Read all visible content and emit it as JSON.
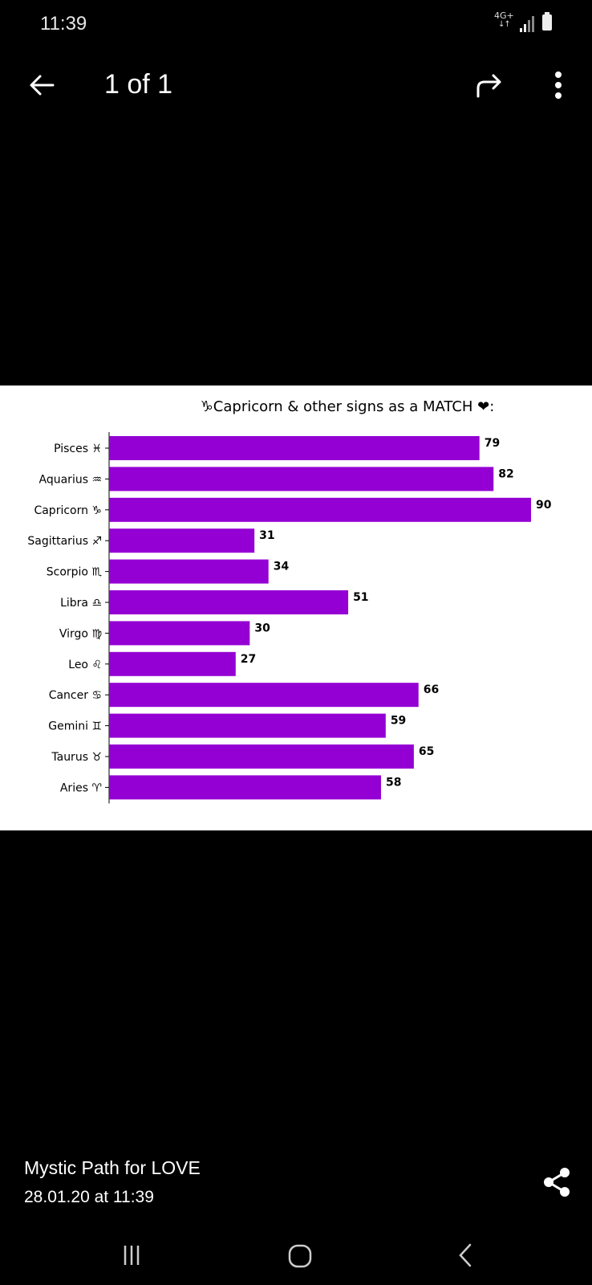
{
  "status_bar": {
    "time": "11:39",
    "network_type": "4G+",
    "network_arrows": "↓↑",
    "icons": [
      "signal-icon",
      "battery-icon"
    ]
  },
  "top_bar": {
    "counter": "1 of 1",
    "icons": [
      "back-arrow-icon",
      "share-forward-icon",
      "more-vert-icon"
    ]
  },
  "chart_data": {
    "type": "bar",
    "orientation": "horizontal",
    "title": "♑Capricorn & other signs as a MATCH ❤:",
    "categories": [
      "Pisces ♓",
      "Aquarius ♒",
      "Capricorn ♑",
      "Sagittarius ♐",
      "Scorpio ♏",
      "Libra ♎",
      "Virgo ♍",
      "Leo ♌",
      "Cancer ♋",
      "Gemini ♊",
      "Taurus ♉",
      "Aries ♈"
    ],
    "values": [
      79,
      82,
      90,
      31,
      34,
      51,
      30,
      27,
      66,
      59,
      65,
      58
    ],
    "value_labels": [
      "79",
      "82",
      "90",
      "31",
      "34",
      "51",
      "30",
      "27",
      "66",
      "59",
      "65",
      "58"
    ],
    "xlim": [
      0,
      90
    ],
    "bar_color": "#9400d3",
    "grid": false,
    "legend": "none"
  },
  "caption": {
    "title": "Mystic Path for LOVE",
    "date": "28.01.20 at 11:39"
  },
  "nav_bar": {
    "icons": [
      "recents-icon",
      "home-icon",
      "nav-back-icon"
    ]
  },
  "colors": {
    "background": "#000000",
    "image_background": "#ffffff",
    "text": "#ffffff"
  }
}
